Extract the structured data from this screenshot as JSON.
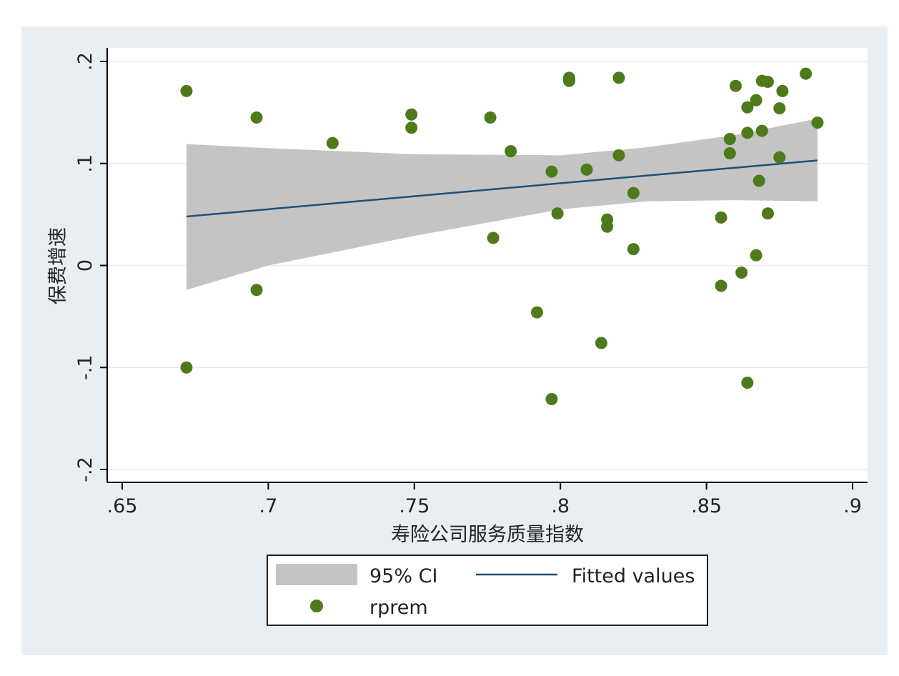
{
  "chart_data": {
    "type": "scatter",
    "xlabel": "寿险公司服务质量指数",
    "ylabel": "保费增速",
    "xlim": [
      0.65,
      0.9
    ],
    "ylim": [
      -0.2,
      0.2
    ],
    "x_ticks": [
      {
        "value": 0.65,
        "label": ".65"
      },
      {
        "value": 0.7,
        "label": ".7"
      },
      {
        "value": 0.75,
        "label": ".75"
      },
      {
        "value": 0.8,
        "label": ".8"
      },
      {
        "value": 0.85,
        "label": ".85"
      },
      {
        "value": 0.9,
        "label": ".9"
      }
    ],
    "y_ticks": [
      {
        "value": -0.2,
        "label": "-.2"
      },
      {
        "value": -0.1,
        "label": "-.1"
      },
      {
        "value": 0,
        "label": "0"
      },
      {
        "value": 0.1,
        "label": ".1"
      },
      {
        "value": 0.2,
        "label": ".2"
      }
    ],
    "grid": true,
    "legend_position": "bottom",
    "colors": {
      "points": "#4e7a1c",
      "fit_line": "#1f4e79",
      "ci_band": "#c4c4c4",
      "plot_background": "#ffffff",
      "outer_background": "#e9eef3"
    },
    "legend": [
      {
        "label": "95% CI",
        "kind": "band"
      },
      {
        "label": "Fitted values",
        "kind": "line"
      },
      {
        "label": "rprem",
        "kind": "marker"
      }
    ],
    "fitted_line": {
      "x": [
        0.672,
        0.888
      ],
      "y": [
        0.048,
        0.103
      ]
    },
    "ci_band": {
      "x": [
        0.672,
        0.7,
        0.75,
        0.8,
        0.83,
        0.86,
        0.888
      ],
      "upper": [
        0.119,
        0.115,
        0.109,
        0.108,
        0.116,
        0.128,
        0.144
      ],
      "lower": [
        -0.024,
        0.0,
        0.029,
        0.055,
        0.063,
        0.064,
        0.063
      ]
    },
    "series": [
      {
        "name": "rprem",
        "points": [
          [
            0.672,
            0.171
          ],
          [
            0.672,
            -0.1
          ],
          [
            0.696,
            0.145
          ],
          [
            0.696,
            -0.024
          ],
          [
            0.722,
            0.12
          ],
          [
            0.749,
            0.148
          ],
          [
            0.749,
            0.135
          ],
          [
            0.776,
            0.145
          ],
          [
            0.777,
            0.027
          ],
          [
            0.783,
            0.112
          ],
          [
            0.792,
            -0.046
          ],
          [
            0.797,
            0.092
          ],
          [
            0.797,
            -0.131
          ],
          [
            0.799,
            0.051
          ],
          [
            0.803,
            0.184
          ],
          [
            0.803,
            0.181
          ],
          [
            0.809,
            0.094
          ],
          [
            0.814,
            -0.076
          ],
          [
            0.816,
            0.045
          ],
          [
            0.816,
            0.038
          ],
          [
            0.82,
            0.184
          ],
          [
            0.82,
            0.108
          ],
          [
            0.825,
            0.071
          ],
          [
            0.825,
            0.016
          ],
          [
            0.855,
            0.047
          ],
          [
            0.855,
            -0.02
          ],
          [
            0.858,
            0.124
          ],
          [
            0.858,
            0.11
          ],
          [
            0.86,
            0.176
          ],
          [
            0.862,
            -0.007
          ],
          [
            0.864,
            0.155
          ],
          [
            0.864,
            0.13
          ],
          [
            0.864,
            -0.115
          ],
          [
            0.867,
            0.162
          ],
          [
            0.867,
            0.01
          ],
          [
            0.868,
            0.083
          ],
          [
            0.869,
            0.181
          ],
          [
            0.869,
            0.132
          ],
          [
            0.871,
            0.18
          ],
          [
            0.871,
            0.051
          ],
          [
            0.875,
            0.154
          ],
          [
            0.875,
            0.106
          ],
          [
            0.876,
            0.171
          ],
          [
            0.884,
            0.188
          ],
          [
            0.888,
            0.14
          ]
        ]
      }
    ]
  }
}
